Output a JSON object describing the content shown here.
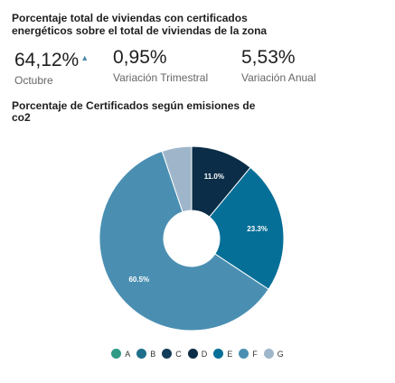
{
  "header": {
    "title": "Porcentaje total de viviendas con certificados energéticos sobre el total de viviendas de la zona"
  },
  "stats": [
    {
      "value": "64,12%",
      "label": "Octubre",
      "trend_icon": "caret-up-icon"
    },
    {
      "value": "0,95%",
      "label": "Variación Trimestral"
    },
    {
      "value": "5,53%",
      "label": "Variación Anual"
    }
  ],
  "colors": {
    "A": "#2f9a86",
    "B": "#1f6f8c",
    "C": "#123c58",
    "D": "#0b2d47",
    "E": "#066f97",
    "F": "#4a8fb2",
    "G": "#9fb6ca"
  },
  "chart_data": {
    "type": "pie",
    "title": "Porcentaje de Certificados según emisiones de co2",
    "categories": [
      "A",
      "B",
      "C",
      "D",
      "E",
      "F",
      "G"
    ],
    "values": [
      0,
      0,
      0,
      11.0,
      23.3,
      60.5,
      5.2
    ],
    "data_labels": [
      "",
      "",
      "",
      "11.0%",
      "23.3%",
      "60.5%",
      ""
    ],
    "donut": true,
    "legend_position": "bottom"
  }
}
